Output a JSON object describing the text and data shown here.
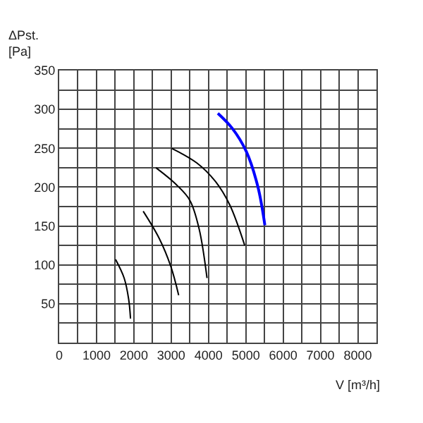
{
  "chart_data": {
    "type": "line",
    "ylabel": "ΔPst.\n[Pa]",
    "xlabel": "V [m³/h]",
    "xlim": [
      0,
      8500
    ],
    "ylim": [
      0,
      350
    ],
    "xticks": [
      0,
      {
        "value": 500,
        "label": null
      },
      1000,
      {
        "value": 1500,
        "label": null
      },
      2000,
      {
        "value": 2500,
        "label": null
      },
      3000,
      {
        "value": 3500,
        "label": null
      },
      4000,
      {
        "value": 4500,
        "label": null
      },
      5000,
      {
        "value": 5500,
        "label": null
      },
      6000,
      {
        "value": 6500,
        "label": null
      },
      7000,
      {
        "value": 7500,
        "label": null
      },
      8000,
      {
        "value": 8500,
        "label": null
      }
    ],
    "yticks": [
      {
        "value": 0,
        "label": null
      },
      {
        "value": 25,
        "label": null
      },
      50,
      {
        "value": 75,
        "label": null
      },
      100,
      {
        "value": 125,
        "label": null
      },
      150,
      {
        "value": 175,
        "label": null
      },
      200,
      {
        "value": 225,
        "label": null
      },
      250,
      {
        "value": 275,
        "label": null
      },
      300,
      {
        "value": 325,
        "label": null
      },
      350
    ],
    "grid": true,
    "marker": "none",
    "line_style": "solid",
    "series": [
      {
        "color": "#000000",
        "x": [
          1510,
          1740,
          1860,
          1910
        ],
        "values": [
          107,
          83,
          56,
          31
        ]
      },
      {
        "color": "#000000",
        "x": [
          2250,
          2680,
          2990,
          3200
        ],
        "values": [
          169,
          134,
          98,
          61
        ]
      },
      {
        "color": "#000000",
        "x": [
          2590,
          3120,
          3500,
          3750,
          3960
        ],
        "values": [
          225,
          204,
          183,
          146,
          83
        ]
      },
      {
        "color": "#000000",
        "x": [
          3010,
          3690,
          4190,
          4570,
          4970
        ],
        "values": [
          250,
          231,
          207,
          177,
          125
        ]
      },
      {
        "color": "#0000ff",
        "x": [
          4250,
          4630,
          5010,
          5320,
          5510
        ],
        "values": [
          295,
          276,
          246,
          201,
          151
        ]
      }
    ]
  }
}
